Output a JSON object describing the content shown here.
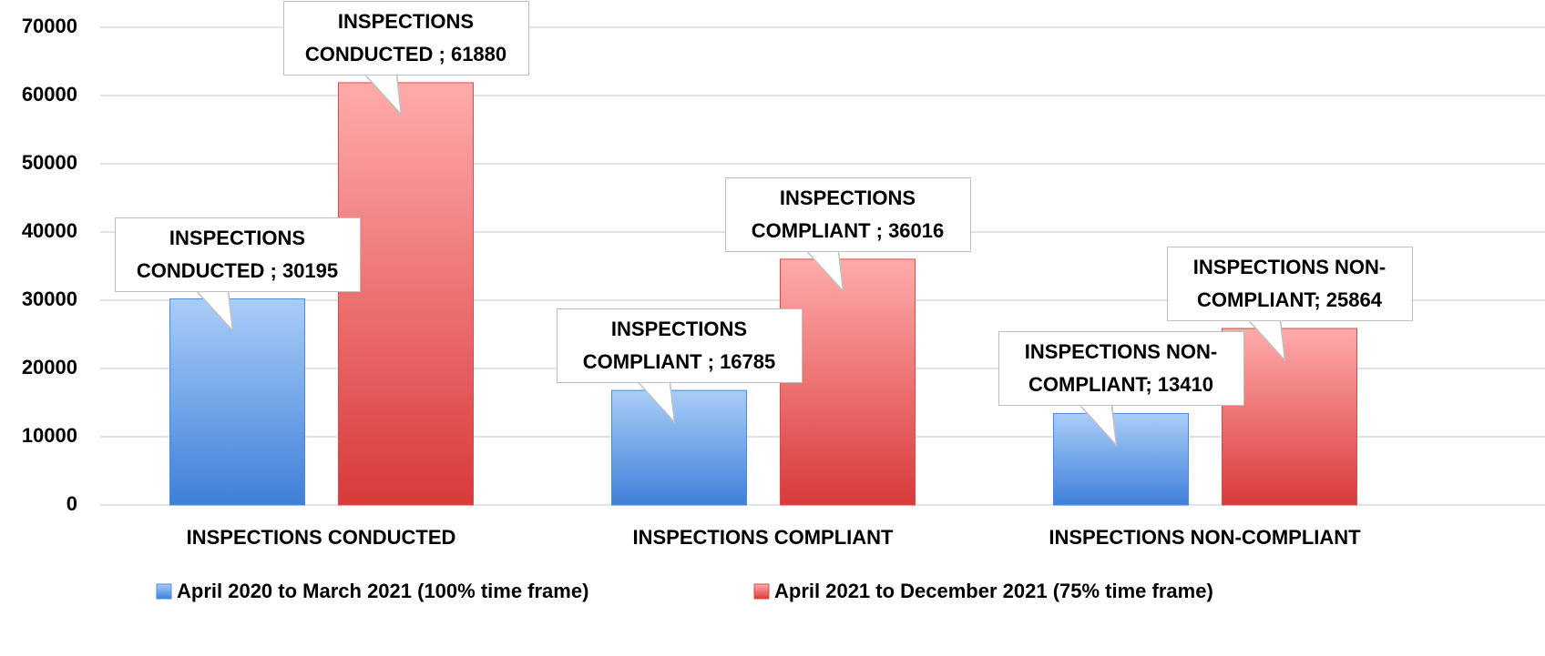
{
  "chart_data": {
    "type": "bar",
    "categories": [
      "INSPECTIONS CONDUCTED",
      "INSPECTIONS COMPLIANT",
      "INSPECTIONS NON-COMPLIANT"
    ],
    "series": [
      {
        "name": "April 2020 to March 2021 (100% time frame)",
        "color": "#4a8ae0",
        "values": [
          30195,
          16785,
          13410
        ],
        "value_labels": [
          "INSPECTIONS CONDUCTED ; 30195",
          "INSPECTIONS COMPLIANT ; 16785",
          "INSPECTIONS NON-COMPLIANT; 13410"
        ]
      },
      {
        "name": "April 2021 to December 2021 (75% time frame)",
        "color": "#e04848",
        "values": [
          61880,
          36016,
          25864
        ],
        "value_labels": [
          "INSPECTIONS CONDUCTED ; 61880",
          "INSPECTIONS COMPLIANT ; 36016",
          "INSPECTIONS NON-COMPLIANT; 25864"
        ]
      }
    ],
    "ylim": [
      0,
      70000
    ],
    "yticks": [
      0,
      10000,
      20000,
      30000,
      40000,
      50000,
      60000,
      70000
    ],
    "grid": true,
    "legend": "bottom"
  }
}
